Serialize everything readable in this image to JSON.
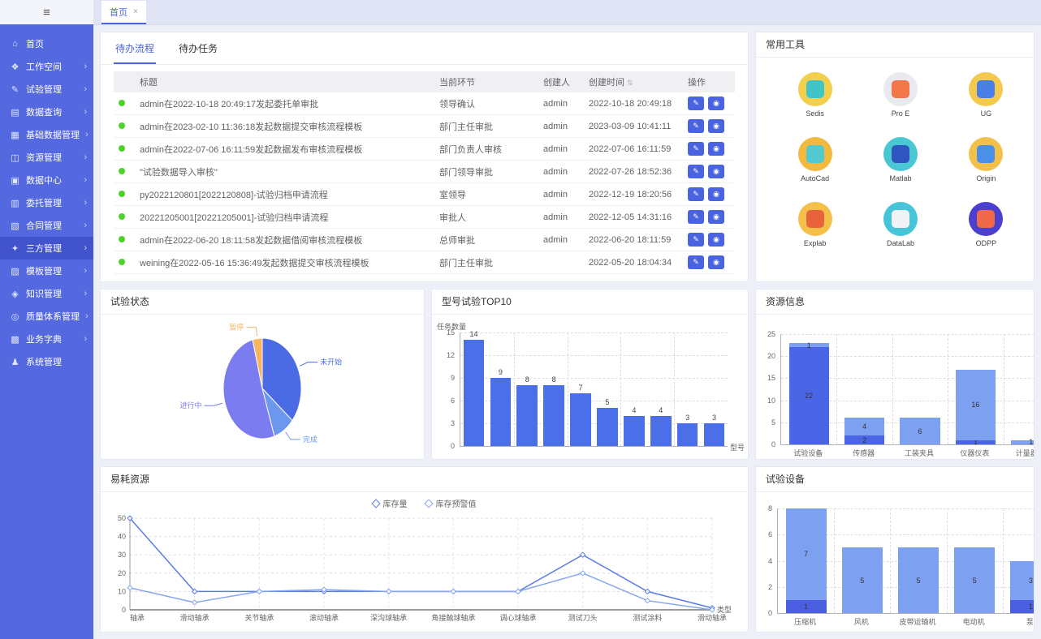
{
  "sidebar": {
    "collapse_icon": "≡",
    "items": [
      {
        "label": "首页",
        "icon": "home-icon",
        "glyph": "⌂",
        "arrow": false,
        "active": false
      },
      {
        "label": "工作空间",
        "icon": "workspace-icon",
        "glyph": "❖",
        "arrow": true,
        "active": false
      },
      {
        "label": "试验管理",
        "icon": "test-manage-icon",
        "glyph": "✎",
        "arrow": true,
        "active": false
      },
      {
        "label": "数据查询",
        "icon": "data-query-icon",
        "glyph": "▤",
        "arrow": true,
        "active": false
      },
      {
        "label": "基础数据管理",
        "icon": "base-data-icon",
        "glyph": "▦",
        "arrow": true,
        "active": false
      },
      {
        "label": "资源管理",
        "icon": "resource-manage-icon",
        "glyph": "◫",
        "arrow": true,
        "active": false
      },
      {
        "label": "数据中心",
        "icon": "data-center-icon",
        "glyph": "▣",
        "arrow": true,
        "active": false
      },
      {
        "label": "委托管理",
        "icon": "commission-icon",
        "glyph": "▥",
        "arrow": true,
        "active": false
      },
      {
        "label": "合同管理",
        "icon": "contract-icon",
        "glyph": "▧",
        "arrow": true,
        "active": false
      },
      {
        "label": "三方管理",
        "icon": "third-party-icon",
        "glyph": "✦",
        "arrow": true,
        "active": true
      },
      {
        "label": "模板管理",
        "icon": "template-icon",
        "glyph": "▨",
        "arrow": true,
        "active": false
      },
      {
        "label": "知识管理",
        "icon": "knowledge-icon",
        "glyph": "◈",
        "arrow": true,
        "active": false
      },
      {
        "label": "质量体系管理",
        "icon": "quality-icon",
        "glyph": "◎",
        "arrow": true,
        "active": false
      },
      {
        "label": "业务字典",
        "icon": "dictionary-icon",
        "glyph": "▩",
        "arrow": true,
        "active": false
      },
      {
        "label": "系统管理",
        "icon": "system-icon",
        "glyph": "♟",
        "arrow": false,
        "active": false
      }
    ]
  },
  "tabbar": {
    "tabs": [
      {
        "label": "首页",
        "close": "×",
        "active": true
      }
    ]
  },
  "todo": {
    "tabs": [
      {
        "label": "待办流程",
        "active": true
      },
      {
        "label": "待办任务",
        "active": false
      }
    ],
    "columns": [
      {
        "label": "标题",
        "sort": false
      },
      {
        "label": "当前环节",
        "sort": false
      },
      {
        "label": "创建人",
        "sort": false
      },
      {
        "label": "创建时间",
        "sort": true
      },
      {
        "label": "操作",
        "sort": false
      }
    ],
    "sort_icon": "⇅",
    "actions": [
      {
        "name": "edit-button",
        "glyph": "✎"
      },
      {
        "name": "detail-button",
        "glyph": "◉"
      }
    ],
    "rows": [
      {
        "title": "admin在2022-10-18 20:49:17发起委托单审批",
        "step": "领导确认",
        "creator": "admin",
        "time": "2022-10-18 20:49:18"
      },
      {
        "title": "admin在2023-02-10 11:36:18发起数据提交审核流程模板",
        "step": "部门主任审批",
        "creator": "admin",
        "time": "2023-03-09 10:41:11"
      },
      {
        "title": "admin在2022-07-06 16:11:59发起数据发布审核流程模板",
        "step": "部门负责人审核",
        "creator": "admin",
        "time": "2022-07-06 16:11:59"
      },
      {
        "title": "\"试验数据导入审核\"",
        "step": "部门领导审批",
        "creator": "admin",
        "time": "2022-07-26 18:52:36"
      },
      {
        "title": "py2022120801[2022120808]-试验归档申请流程",
        "step": "室领导",
        "creator": "admin",
        "time": "2022-12-19 18:20:56"
      },
      {
        "title": "20221205001[20221205001]-试验归档申请流程",
        "step": "审批人",
        "creator": "admin",
        "time": "2022-12-05 14:31:16"
      },
      {
        "title": "admin在2022-06-20 18:11:58发起数据借阅审核流程模板",
        "step": "总师审批",
        "creator": "admin",
        "time": "2022-06-20 18:11:59"
      },
      {
        "title": "weining在2022-05-16 15:36:49发起数据提交审核流程模板",
        "step": "部门主任审批",
        "creator": "",
        "time": "2022-05-20 18:04:34"
      }
    ]
  },
  "tools": {
    "title": "常用工具",
    "items": [
      {
        "name": "Sedis",
        "outer": "#f3cf4e",
        "inner": "#40c4c8"
      },
      {
        "name": "Pro E",
        "outer": "#e8eaf0",
        "inner": "#f2784b"
      },
      {
        "name": "UG",
        "outer": "#f3c94e",
        "inner": "#4a7fe8"
      },
      {
        "name": "AutoCad",
        "outer": "#f3b93e",
        "inner": "#52c8d0"
      },
      {
        "name": "Matlab",
        "outer": "#49c8d4",
        "inner": "#2f55c0"
      },
      {
        "name": "Origin",
        "outer": "#f3c04a",
        "inner": "#4a90e8"
      },
      {
        "name": "Explab",
        "outer": "#f3c04a",
        "inner": "#e8633c"
      },
      {
        "name": "DataLab",
        "outer": "#46c4d8",
        "inner": "#f2f3f5"
      },
      {
        "name": "ODPP",
        "outer": "#4b3fd0",
        "inner": "#f06a4a"
      }
    ]
  },
  "chart_data": [
    {
      "type": "pie",
      "title": "试验状态",
      "slices": [
        {
          "label": "未开始",
          "value": 36,
          "color": "#4a6be4"
        },
        {
          "label": "完成",
          "value": 9,
          "color": "#6b97ee"
        },
        {
          "label": "进行中",
          "value": 51,
          "color": "#7b7cf0"
        },
        {
          "label": "暂停",
          "value": 4,
          "color": "#f8b55e"
        }
      ]
    },
    {
      "type": "bar",
      "title": "型号试验TOP10",
      "ylabel": "任务数量",
      "xlabel": "型号",
      "ylim": [
        0,
        15
      ],
      "yticks": [
        0,
        3,
        6,
        9,
        12,
        15
      ],
      "categories": [
        "",
        "",
        "",
        "",
        "",
        "",
        "",
        "",
        "",
        ""
      ],
      "series": [
        {
          "name": "任务数量",
          "color": "#4a6fe8",
          "values": [
            14,
            9,
            8,
            8,
            7,
            5,
            4,
            4,
            3,
            3
          ]
        }
      ]
    },
    {
      "type": "stacked-bar",
      "title": "资源信息",
      "ylim": [
        0,
        25
      ],
      "yticks": [
        0,
        5,
        10,
        15,
        20,
        25
      ],
      "categories": [
        "试验设备",
        "传感器",
        "工装夹具",
        "仪器仪表",
        "计量器具"
      ],
      "series": [
        {
          "name": "lower",
          "color": "#4a66e6",
          "values": [
            22,
            2,
            0,
            1,
            0
          ]
        },
        {
          "name": "upper",
          "color": "#7da0f0",
          "values": [
            1,
            4,
            6,
            16,
            1
          ]
        }
      ]
    },
    {
      "type": "line",
      "title": "易耗资源",
      "xlabel": "类型",
      "ylim": [
        0,
        50
      ],
      "yticks": [
        0,
        10,
        20,
        30,
        40,
        50
      ],
      "categories": [
        "轴承",
        "滑动轴承",
        "关节轴承",
        "滚动轴承",
        "深沟球轴承",
        "角接触球轴承",
        "调心球轴承",
        "测试刀头",
        "测试涂料",
        "滑动轴承"
      ],
      "series": [
        {
          "name": "库存量",
          "color": "#5b7be6",
          "values": [
            50,
            10,
            10,
            10,
            10,
            10,
            10,
            30,
            10,
            1
          ]
        },
        {
          "name": "库存预警值",
          "color": "#86a6f0",
          "values": [
            12,
            4,
            10,
            11,
            10,
            10,
            10,
            20,
            5,
            0
          ]
        }
      ]
    },
    {
      "type": "stacked-bar",
      "title": "试验设备",
      "ylim": [
        0,
        8
      ],
      "yticks": [
        0,
        2,
        4,
        6,
        8
      ],
      "categories": [
        "压缩机",
        "风机",
        "皮带运输机",
        "电动机",
        "泵"
      ],
      "series": [
        {
          "name": "lower",
          "color": "#4a5fe0",
          "values": [
            1,
            0,
            0,
            0,
            1
          ]
        },
        {
          "name": "upper",
          "color": "#7da0f0",
          "values": [
            7,
            5,
            5,
            5,
            3
          ]
        }
      ]
    }
  ]
}
